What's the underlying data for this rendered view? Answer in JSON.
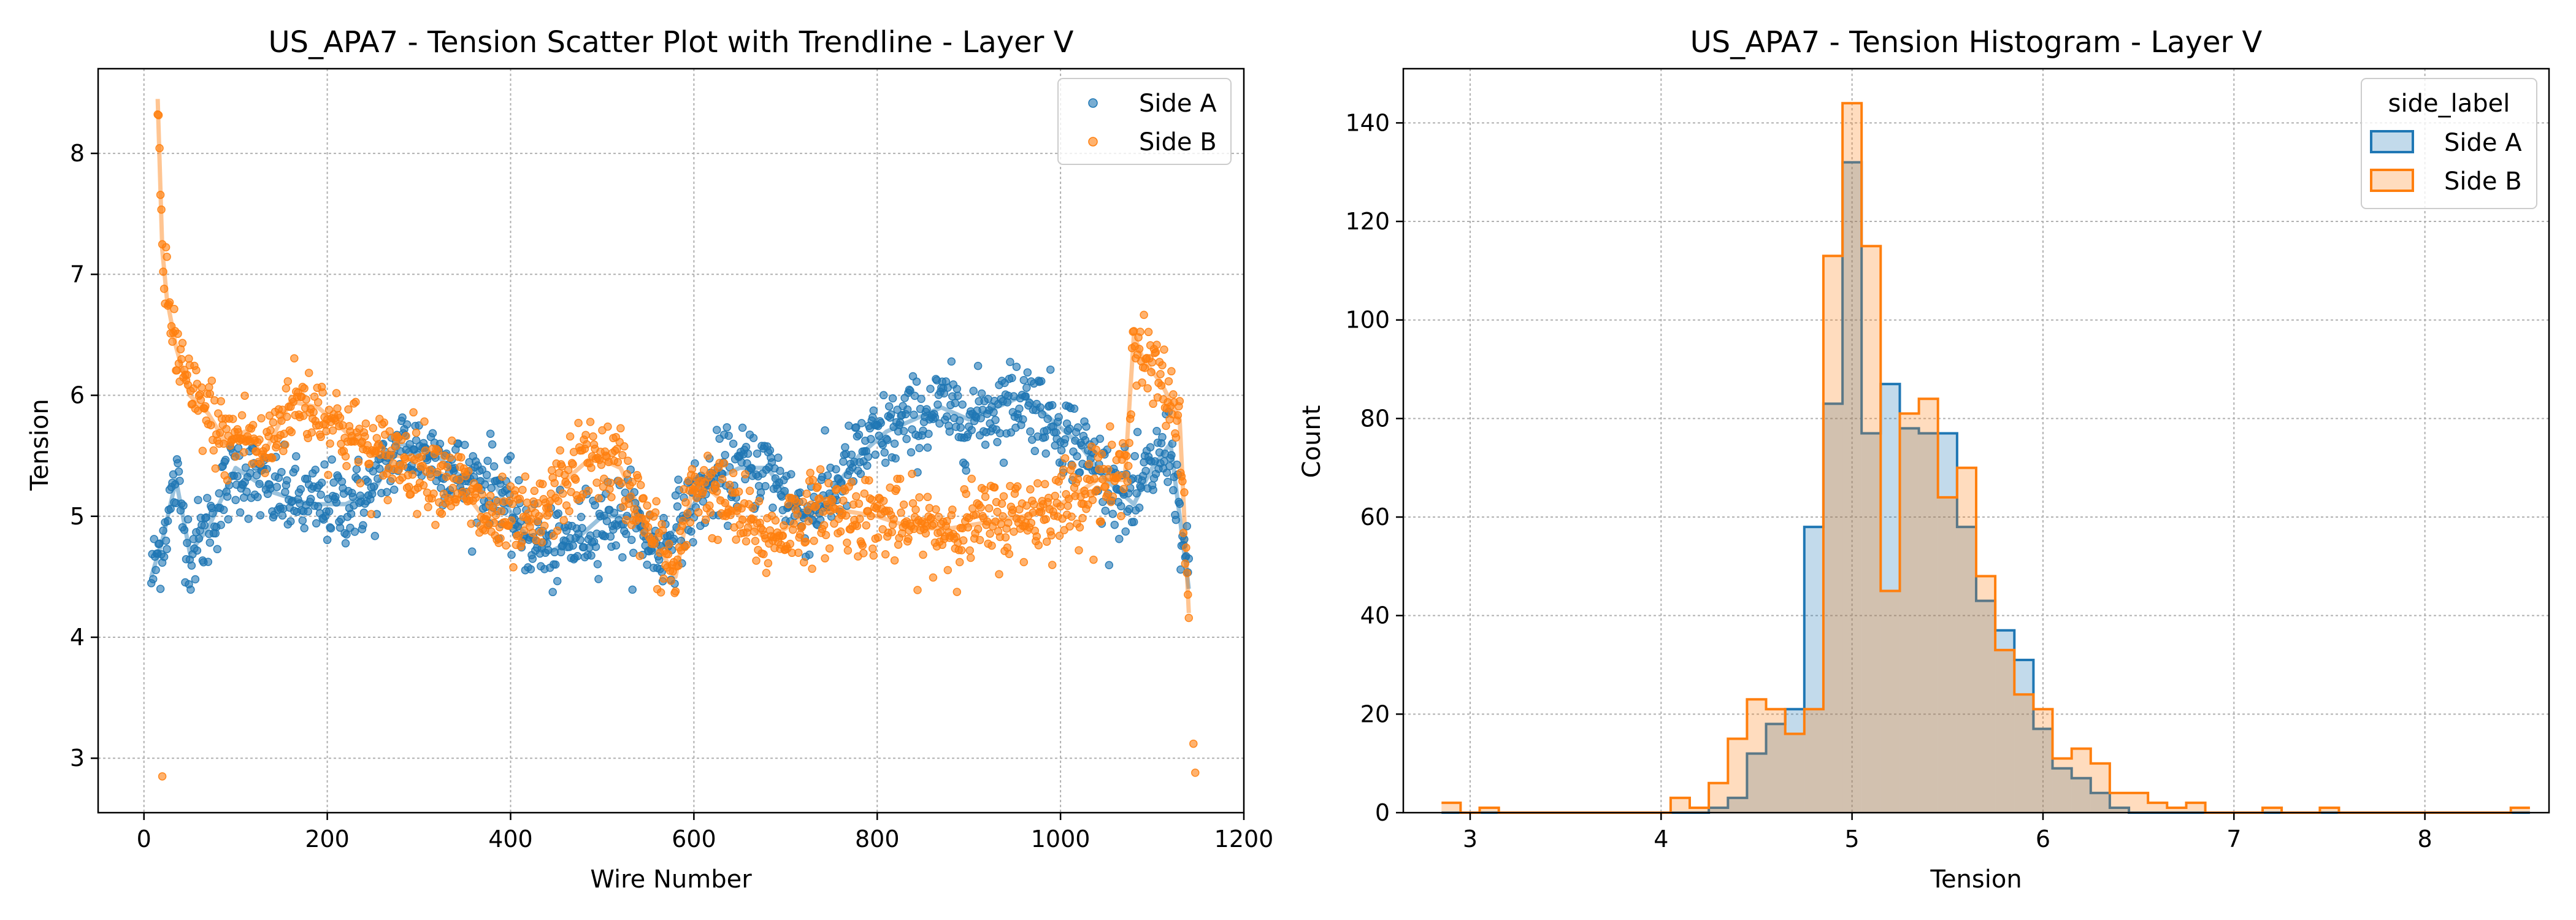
{
  "chart_data": [
    {
      "type": "scatter",
      "title": "US_APA7 - Tension Scatter Plot with Trendline - Layer V",
      "xlabel": "Wire Number",
      "ylabel": "Tension",
      "xlim": [
        -50,
        1200
      ],
      "ylim": [
        2.55,
        8.7
      ],
      "xticks": [
        0,
        200,
        400,
        600,
        800,
        1000,
        1200
      ],
      "yticks": [
        3,
        4,
        5,
        6,
        7,
        8
      ],
      "grid": true,
      "legend_position": "top-right",
      "series": [
        {
          "name": "Side A",
          "color": "#1f77b4",
          "trend": [
            [
              8,
              4.5
            ],
            [
              20,
              4.8
            ],
            [
              35,
              5.3
            ],
            [
              50,
              4.7
            ],
            [
              70,
              4.9
            ],
            [
              100,
              5.4
            ],
            [
              140,
              5.2
            ],
            [
              180,
              5.1
            ],
            [
              220,
              5.1
            ],
            [
              250,
              5.2
            ],
            [
              280,
              5.6
            ],
            [
              320,
              5.5
            ],
            [
              350,
              5.3
            ],
            [
              380,
              5.3
            ],
            [
              410,
              4.9
            ],
            [
              440,
              4.7
            ],
            [
              470,
              4.8
            ],
            [
              500,
              5.0
            ],
            [
              530,
              5.0
            ],
            [
              560,
              4.7
            ],
            [
              590,
              5.0
            ],
            [
              620,
              5.3
            ],
            [
              650,
              5.4
            ],
            [
              680,
              5.4
            ],
            [
              700,
              5.2
            ],
            [
              720,
              5.0
            ],
            [
              750,
              5.2
            ],
            [
              780,
              5.5
            ],
            [
              810,
              5.7
            ],
            [
              840,
              5.8
            ],
            [
              870,
              5.9
            ],
            [
              900,
              5.8
            ],
            [
              930,
              5.9
            ],
            [
              960,
              6.0
            ],
            [
              990,
              5.8
            ],
            [
              1020,
              5.6
            ],
            [
              1050,
              5.3
            ],
            [
              1080,
              5.1
            ],
            [
              1100,
              5.4
            ],
            [
              1120,
              5.6
            ],
            [
              1140,
              4.4
            ]
          ]
        },
        {
          "name": "Side B",
          "color": "#ff7f0e",
          "trend": [
            [
              15,
              8.45
            ],
            [
              20,
              7.2
            ],
            [
              25,
              6.8
            ],
            [
              35,
              6.4
            ],
            [
              50,
              6.0
            ],
            [
              70,
              5.85
            ],
            [
              90,
              5.6
            ],
            [
              110,
              5.7
            ],
            [
              130,
              5.5
            ],
            [
              160,
              5.95
            ],
            [
              190,
              5.9
            ],
            [
              220,
              5.7
            ],
            [
              250,
              5.5
            ],
            [
              280,
              5.5
            ],
            [
              310,
              5.4
            ],
            [
              340,
              5.3
            ],
            [
              370,
              5.0
            ],
            [
              400,
              4.9
            ],
            [
              430,
              4.95
            ],
            [
              460,
              5.3
            ],
            [
              490,
              5.5
            ],
            [
              520,
              5.4
            ],
            [
              550,
              4.9
            ],
            [
              580,
              4.5
            ],
            [
              600,
              5.3
            ],
            [
              620,
              5.2
            ],
            [
              650,
              5.0
            ],
            [
              680,
              4.8
            ],
            [
              720,
              5.0
            ],
            [
              760,
              5.05
            ],
            [
              800,
              5.0
            ],
            [
              840,
              4.9
            ],
            [
              880,
              4.9
            ],
            [
              920,
              4.95
            ],
            [
              960,
              5.0
            ],
            [
              1000,
              5.1
            ],
            [
              1040,
              5.3
            ],
            [
              1070,
              5.3
            ],
            [
              1080,
              6.5
            ],
            [
              1090,
              6.3
            ],
            [
              1110,
              6.1
            ],
            [
              1130,
              5.8
            ],
            [
              1140,
              4.2
            ]
          ]
        }
      ]
    },
    {
      "type": "histogram",
      "title": "US_APA7 - Tension Histogram - Layer V",
      "xlabel": "Tension",
      "ylabel": "Count",
      "xlim": [
        2.65,
        8.65
      ],
      "ylim": [
        0,
        151
      ],
      "xticks": [
        3,
        4,
        5,
        6,
        7,
        8
      ],
      "yticks": [
        0,
        20,
        40,
        60,
        80,
        100,
        120,
        140
      ],
      "grid": true,
      "legend_title": "side_label",
      "legend_position": "top-right",
      "bin_start": 2.85,
      "bin_width": 0.1,
      "series": [
        {
          "name": "Side A",
          "color": "#1f77b4",
          "counts": [
            0,
            0,
            0,
            0,
            0,
            0,
            0,
            0,
            0,
            0,
            0,
            0,
            0,
            0,
            1,
            3,
            12,
            18,
            21,
            58,
            83,
            132,
            77,
            87,
            78,
            77,
            77,
            58,
            43,
            37,
            31,
            17,
            9,
            7,
            4,
            1,
            0,
            0,
            0,
            0,
            0,
            0,
            0,
            0,
            0,
            0,
            0,
            0,
            0,
            0,
            0,
            0,
            0,
            0,
            0,
            0,
            0
          ]
        },
        {
          "name": "Side B",
          "color": "#ff7f0e",
          "counts": [
            2,
            0,
            1,
            0,
            0,
            0,
            0,
            0,
            0,
            0,
            0,
            0,
            3,
            1,
            6,
            15,
            23,
            21,
            16,
            21,
            113,
            144,
            115,
            45,
            81,
            84,
            64,
            70,
            48,
            33,
            24,
            21,
            11,
            13,
            10,
            4,
            4,
            2,
            1,
            2,
            0,
            0,
            0,
            1,
            0,
            0,
            1,
            0,
            0,
            0,
            0,
            0,
            0,
            0,
            0,
            0,
            1
          ]
        }
      ]
    }
  ]
}
